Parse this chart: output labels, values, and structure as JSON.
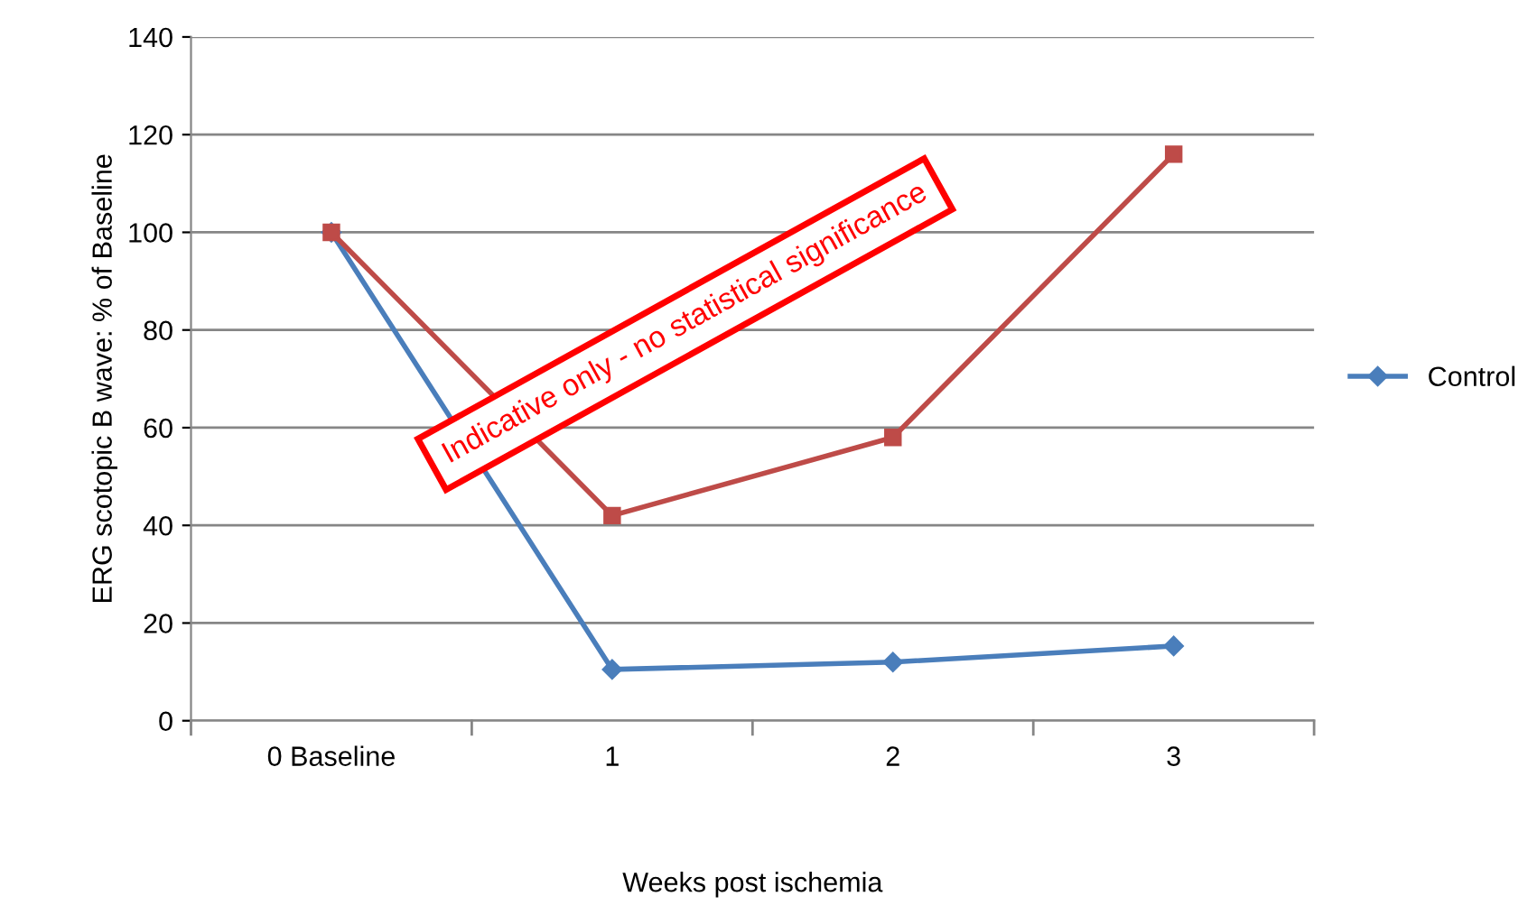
{
  "chart_data": {
    "type": "line",
    "xlabel": "Weeks post ischemia",
    "ylabel": "ERG scotopic B wave: % of Baseline",
    "categories": [
      "0 Baseline",
      "1",
      "2",
      "3"
    ],
    "series": [
      {
        "name": "Control",
        "color": "#4a7ebb",
        "marker": "diamond",
        "values": [
          100,
          10.5,
          12,
          15.3
        ]
      },
      {
        "color": "#be4b48",
        "marker": "square",
        "values": [
          100,
          42,
          58,
          116
        ]
      }
    ],
    "ylim": [
      0,
      140
    ],
    "yticks": [
      0,
      20,
      40,
      60,
      80,
      100,
      120,
      140
    ],
    "grid": "y",
    "legend": "right",
    "annotations": [
      "Indicative only - no statistical significance"
    ]
  }
}
